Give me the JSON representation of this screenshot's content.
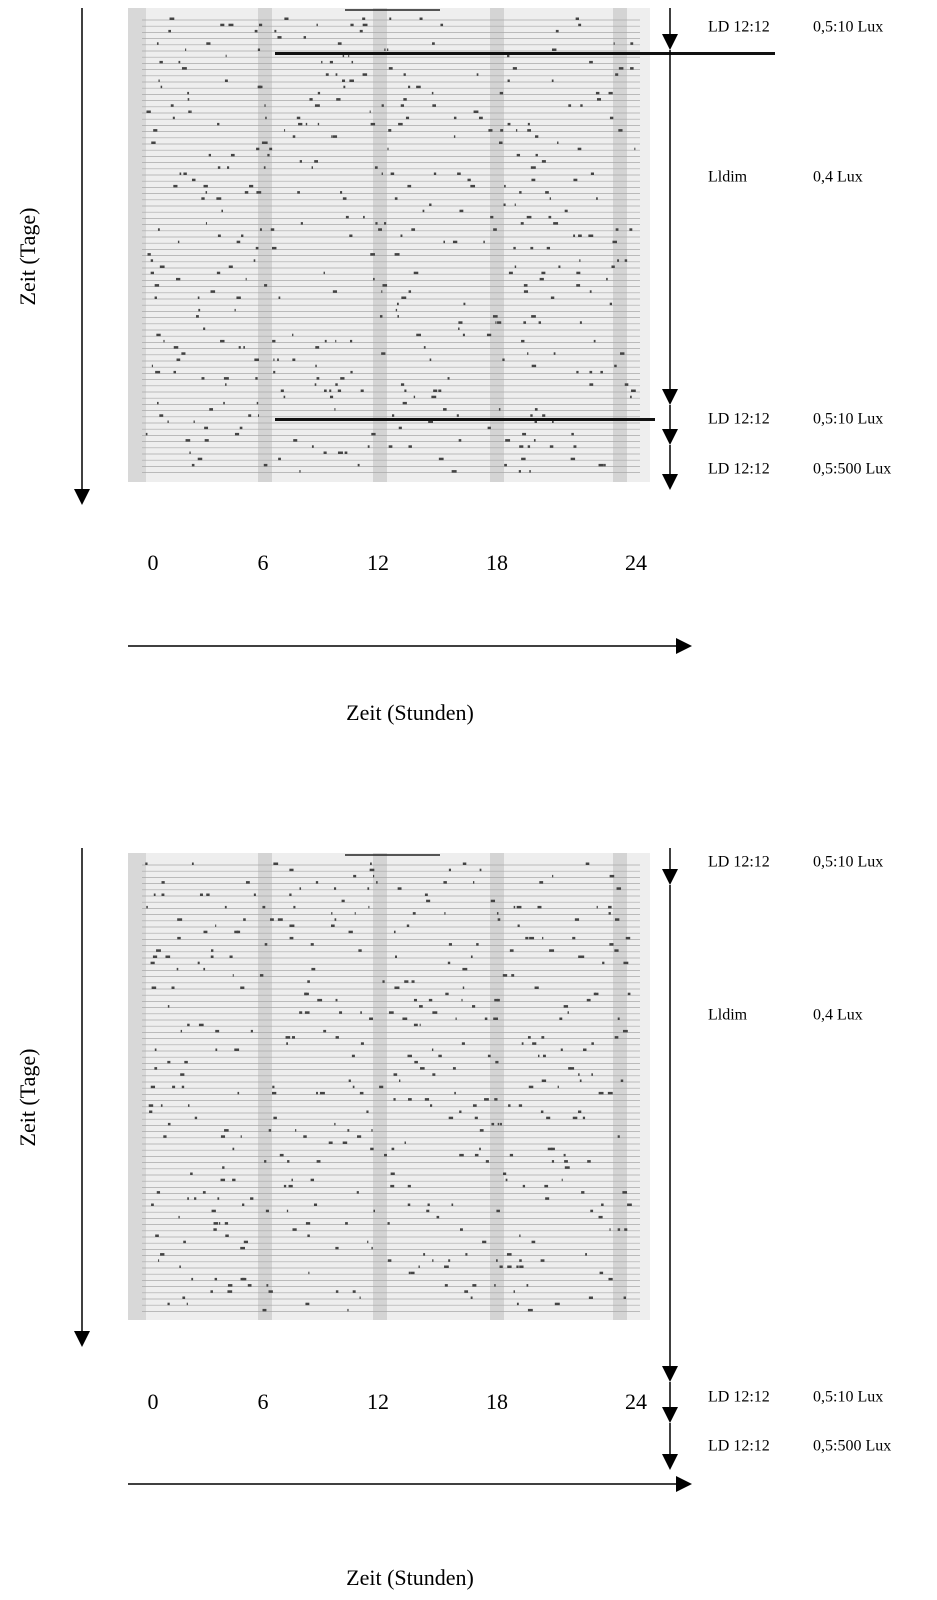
{
  "panels": [
    {
      "y_axis_label": "Zeit (Tage)",
      "x_axis_label": "Zeit (Stunden)",
      "x_tick_labels": [
        "0",
        "6",
        "12",
        "18",
        "24"
      ],
      "conditions": [
        {
          "regime": "LD 12:12",
          "light": "0,5:10 Lux"
        },
        {
          "regime": "Lldim",
          "light": "0,4 Lux"
        },
        {
          "regime": "LD 12:12",
          "light": "0,5:10 Lux"
        },
        {
          "regime": "LD 12:12",
          "light": "0,5:500 Lux"
        }
      ]
    },
    {
      "y_axis_label": "Zeit (Tage)",
      "x_axis_label": "Zeit (Stunden)",
      "x_tick_labels": [
        "0",
        "6",
        "12",
        "18",
        "24"
      ],
      "conditions": [
        {
          "regime": "LD 12:12",
          "light": "0,5:10 Lux"
        },
        {
          "regime": "Lldim",
          "light": "0,4 Lux"
        },
        {
          "regime": "LD 12:12",
          "light": "0,5:10 Lux"
        },
        {
          "regime": "LD 12:12",
          "light": "0,5:500 Lux"
        }
      ]
    }
  ]
}
